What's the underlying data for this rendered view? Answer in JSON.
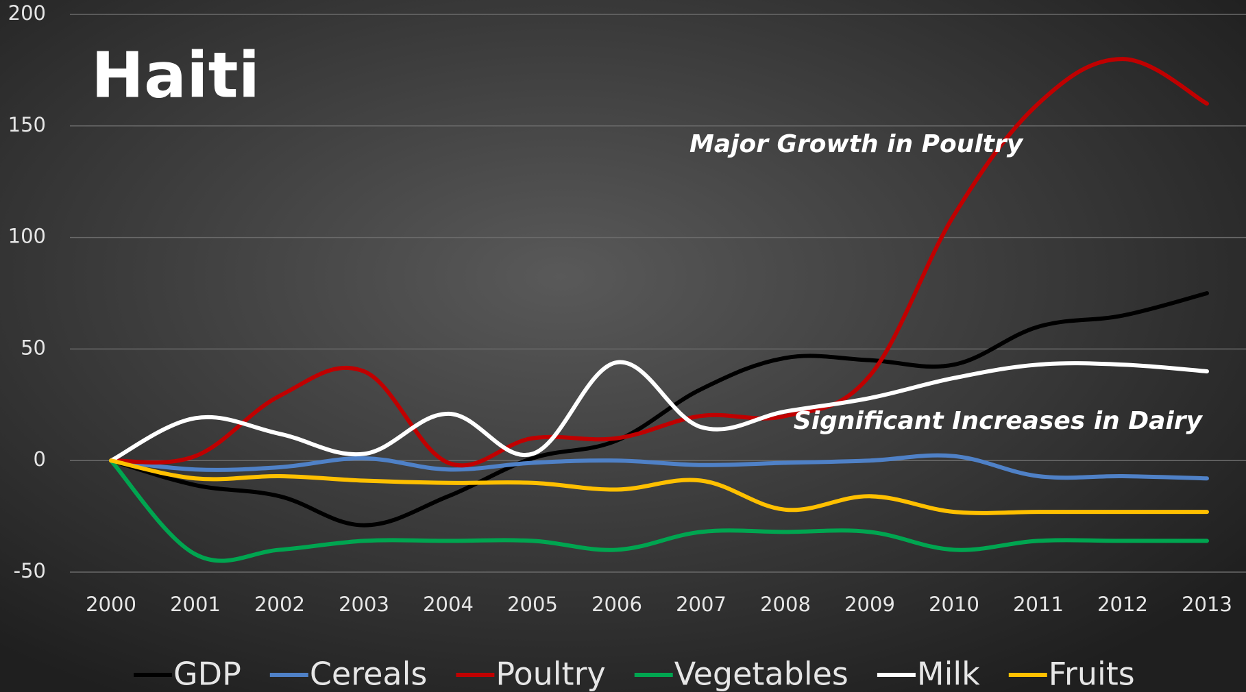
{
  "chart_data": {
    "type": "line",
    "title": "Haiti",
    "annotations": [
      "Major Growth in Poultry",
      "Significant Increases in Dairy"
    ],
    "categories": [
      "2000",
      "2001",
      "2002",
      "2003",
      "2004",
      "2005",
      "2006",
      "2007",
      "2008",
      "2009",
      "2010",
      "2011",
      "2012",
      "2013"
    ],
    "ylim": [
      -50,
      200
    ],
    "yticks": [
      -50,
      0,
      50,
      100,
      150,
      200
    ],
    "grid": true,
    "legend": "bottom",
    "smooth": true,
    "series": [
      {
        "name": "GDP",
        "color": "#000000",
        "values": [
          0,
          -11,
          -16,
          -29,
          -16,
          1,
          9,
          32,
          46,
          45,
          43,
          60,
          65,
          75
        ]
      },
      {
        "name": "Cereals",
        "color": "#4f81c7",
        "values": [
          0,
          -4,
          -3,
          1,
          -4,
          -1,
          0,
          -2,
          -1,
          0,
          2,
          -7,
          -7,
          -8
        ]
      },
      {
        "name": "Poultry",
        "color": "#c00000",
        "values": [
          0,
          2,
          29,
          40,
          -1,
          10,
          10,
          20,
          20,
          38,
          110,
          160,
          180,
          160
        ]
      },
      {
        "name": "Vegetables",
        "color": "#00a550",
        "values": [
          0,
          -42,
          -40,
          -36,
          -36,
          -36,
          -40,
          -32,
          -32,
          -32,
          -40,
          -36,
          -36,
          -36
        ]
      },
      {
        "name": "Milk",
        "color": "#ffffff",
        "values": [
          0,
          19,
          12,
          3,
          21,
          3,
          44,
          15,
          22,
          28,
          37,
          43,
          43,
          40
        ]
      },
      {
        "name": "Fruits",
        "color": "#ffc000",
        "values": [
          0,
          -8,
          -7,
          -9,
          -10,
          -10,
          -13,
          -9,
          -22,
          -16,
          -23,
          -23,
          -23,
          -23
        ]
      }
    ]
  }
}
